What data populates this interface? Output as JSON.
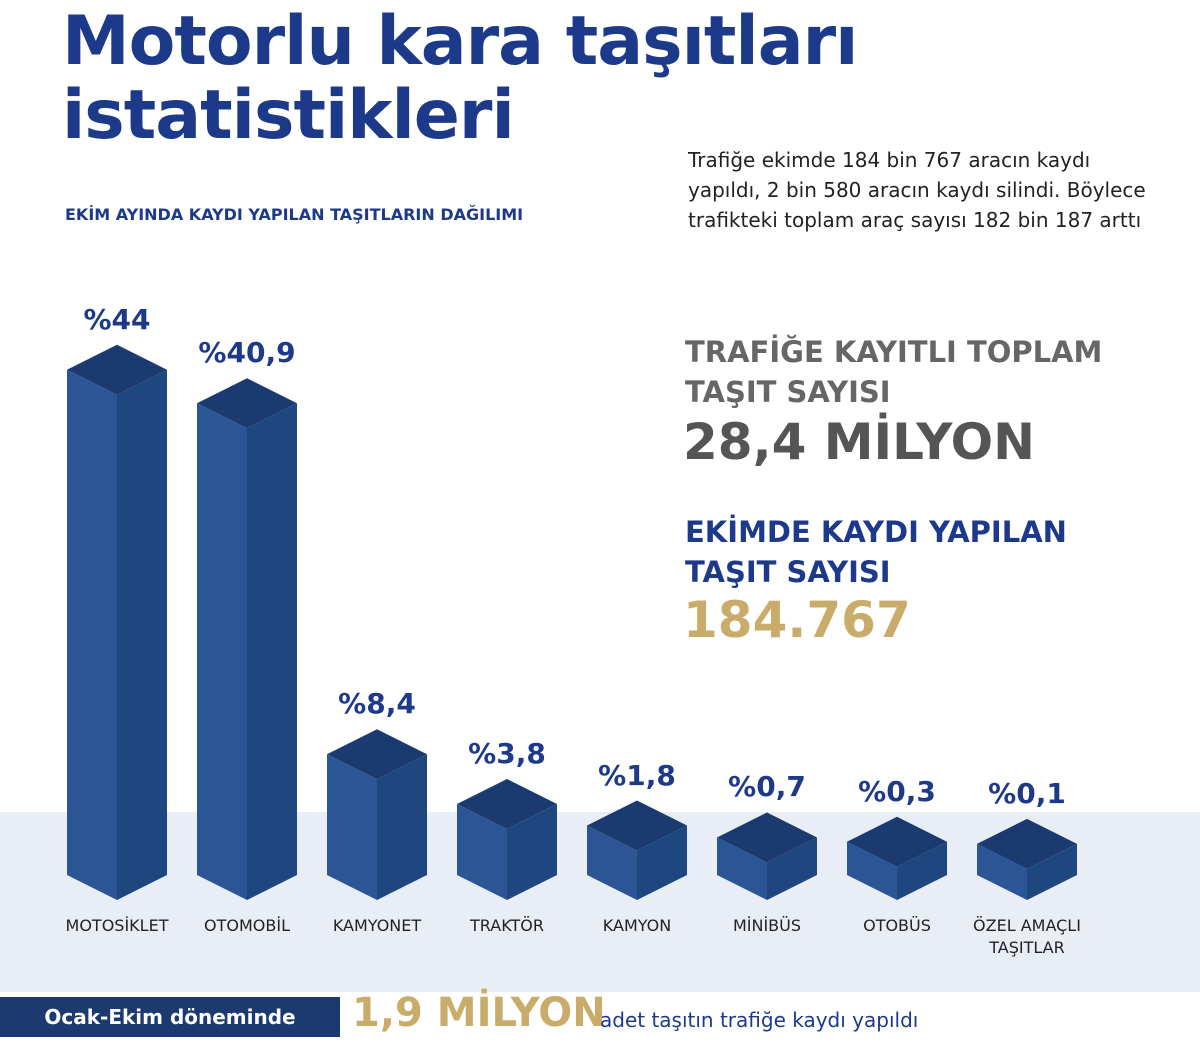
{
  "chart_data": {
    "type": "bar",
    "title": "Motorlu kara taşıtları istatistikleri",
    "subtitle": "EKİM AYINDA KAYDI YAPILAN TAŞITLARIN DAĞILIMI",
    "categories": [
      "MOTOSİKLET",
      "OTOMOBİL",
      "KAMYONET",
      "TRAKTÖR",
      "KAMYON",
      "MİNİBÜS",
      "OTOBÜS",
      "ÖZEL AMAÇLI TAŞITLAR"
    ],
    "values": [
      44,
      40.9,
      8.4,
      3.8,
      1.8,
      0.7,
      0.3,
      0.1
    ],
    "value_labels": [
      "%44",
      "%40,9",
      "%8,4",
      "%3,8",
      "%1,8",
      "%0,7",
      "%0,3",
      "%0,1"
    ],
    "color": "#2b5595"
  },
  "description": "Trafiğe ekimde 184 bin 767 aracın kaydı yapıldı, 2 bin 580 aracın kaydı silindi. Böylece trafikteki toplam araç sayısı 182 bin 187 arttı",
  "stats": [
    {
      "label": "TRAFİĞE KAYITLI TOPLAM TAŞIT SAYISI",
      "value": "28,4 MİLYON"
    },
    {
      "label": "EKİMDE KAYDI YAPILAN TAŞIT SAYISI",
      "value": "184.767"
    }
  ],
  "footer": {
    "left": "Ocak-Ekim döneminde",
    "highlight": "1,9 MİLYON",
    "right": "adet taşıtın trafiğe kaydı yapıldı"
  }
}
